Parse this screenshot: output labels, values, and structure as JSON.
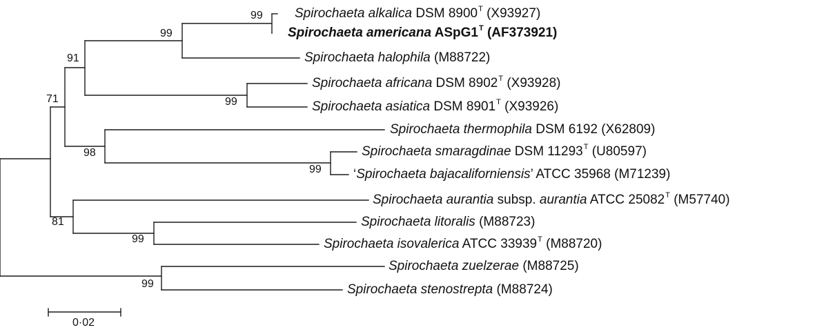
{
  "taxa": [
    {
      "id": "alkalica",
      "genus": "Spirochaeta",
      "species": "alkalica",
      "after": " DSM 8900",
      "type_strain": true,
      "accession": " (X93927)",
      "bold": false
    },
    {
      "id": "americana",
      "genus": "Spirochaeta",
      "species": "americana",
      "after": " ASpG1",
      "type_strain": true,
      "accession": " (AF373921)",
      "bold": true
    },
    {
      "id": "halophila",
      "genus": "Spirochaeta",
      "species": "halophila",
      "after": " (M88722)",
      "type_strain": false,
      "accession": "",
      "bold": false
    },
    {
      "id": "africana",
      "genus": "Spirochaeta",
      "species": "africana",
      "after": " DSM 8902",
      "type_strain": true,
      "accession": " (X93928)",
      "bold": false
    },
    {
      "id": "asiatica",
      "genus": "Spirochaeta",
      "species": "asiatica",
      "after": " DSM 8901",
      "type_strain": true,
      "accession": " (X93926)",
      "bold": false
    },
    {
      "id": "thermophila",
      "genus": "Spirochaeta",
      "species": "thermophila",
      "after": " DSM 6192 (X62809)",
      "type_strain": false,
      "accession": "",
      "bold": false
    },
    {
      "id": "smaragdinae",
      "genus": "Spirochaeta",
      "species": "smaragdinae",
      "after": " DSM 11293",
      "type_strain": true,
      "accession": " (U80597)",
      "bold": false
    },
    {
      "id": "bajacaliforniensis",
      "prefix": "‘",
      "genus": "Spirochaeta",
      "species": "bajacaliforniensis",
      "after": "’ ATCC 35968 (M71239)",
      "type_strain": false,
      "accession": "",
      "bold": false
    },
    {
      "id": "aurantia",
      "genus": "Spirochaeta",
      "species": "aurantia",
      "mid": " subsp. ",
      "subspecies": "aurantia",
      "after": " ATCC 25082",
      "type_strain": true,
      "accession": " (M57740)",
      "bold": false
    },
    {
      "id": "litoralis",
      "genus": "Spirochaeta",
      "species": "litoralis",
      "after": " (M88723)",
      "type_strain": false,
      "accession": "",
      "bold": false
    },
    {
      "id": "isovalerica",
      "genus": "Spirochaeta",
      "species": "isovalerica",
      "after": " ATCC 33939",
      "type_strain": true,
      "accession": " (M88720)",
      "bold": false
    },
    {
      "id": "zuelzerae",
      "genus": "Spirochaeta",
      "species": "zuelzerae",
      "after": " (M88725)",
      "type_strain": false,
      "accession": "",
      "bold": false
    },
    {
      "id": "stenostrepta",
      "genus": "Spirochaeta",
      "species": "stenostrepta",
      "after": " (M88724)",
      "type_strain": false,
      "accession": "",
      "bold": false
    }
  ],
  "type_strain_mark": "T",
  "bootstrap": {
    "alkalica_americana": "99",
    "alkalica_americana_halophila": "99",
    "africana_asiatica": "99",
    "halophila_africana_group": "91",
    "thermophila_group": "98",
    "smaragdinae_bajacaliforniensis": "99",
    "upper_clade": "71",
    "litoralis_isovalerica": "99",
    "aurantia_group": "81",
    "zuelzerae_stenostrepta": "99"
  },
  "scale_bar": {
    "label": "0·02",
    "length": 0.02
  }
}
